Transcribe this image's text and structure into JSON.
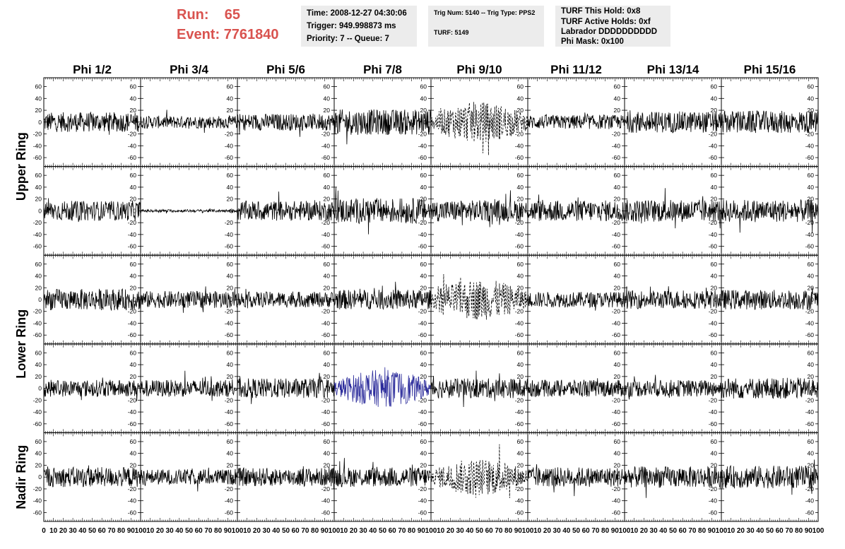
{
  "header": {
    "run_label": "Run:",
    "run_value": "65",
    "event_label": "Event:",
    "event_value": "7761840",
    "time": "Time: 2008-12-27 04:30:06",
    "trigger": "Trigger: 949.998873 ms",
    "priority": "Priority: 7 -- Queue: 7",
    "trig_num": "Trig Num: 5140 -- Trig Type: PPS2",
    "turf": "TURF: 5149",
    "turf_hold": "TURF This Hold: 0x8",
    "turf_active": "TURF Active Holds: 0xf",
    "labrador": "Labrador DDDDDDDDDD",
    "phi_mask": "Phi Mask: 0x100"
  },
  "colors": {
    "run_text": "#d9534f",
    "info_bg": "#ececec",
    "trace": "#000000",
    "highlight_trace": "#2b2b9b"
  },
  "chart_data": {
    "type": "line",
    "columns": [
      "Phi 1/2",
      "Phi 3/4",
      "Phi 5/6",
      "Phi 7/8",
      "Phi 9/10",
      "Phi 11/12",
      "Phi 13/14",
      "Phi 15/16"
    ],
    "ring_labels": [
      {
        "text": "Upper Ring",
        "spans_rows": [
          0,
          1
        ]
      },
      {
        "text": "Lower Ring",
        "spans_rows": [
          2,
          3
        ]
      },
      {
        "text": "Nadir Ring",
        "spans_rows": [
          4,
          4
        ]
      }
    ],
    "xlim": [
      0,
      100
    ],
    "ylim": [
      -75,
      75
    ],
    "y_ticks": [
      -60,
      -40,
      -20,
      0,
      20,
      40,
      60
    ],
    "x_ticks": [
      0,
      10,
      20,
      30,
      40,
      50,
      60,
      70,
      80,
      90,
      100
    ],
    "panels": [
      [
        {
          "amp": 14,
          "style": "solid"
        },
        {
          "amp": 9,
          "style": "solid"
        },
        {
          "amp": 12,
          "style": "solid"
        },
        {
          "amp": 18,
          "style": "solid"
        },
        {
          "amp": 24,
          "style": "dashed"
        },
        {
          "amp": 10,
          "style": "solid"
        },
        {
          "amp": 15,
          "style": "solid"
        },
        {
          "amp": 16,
          "style": "solid"
        }
      ],
      [
        {
          "amp": 14,
          "style": "solid"
        },
        {
          "amp": 2,
          "style": "solid"
        },
        {
          "amp": 14,
          "style": "solid"
        },
        {
          "amp": 18,
          "style": "solid"
        },
        {
          "amp": 15,
          "style": "solid"
        },
        {
          "amp": 15,
          "style": "solid"
        },
        {
          "amp": 16,
          "style": "solid"
        },
        {
          "amp": 16,
          "style": "solid"
        }
      ],
      [
        {
          "amp": 15,
          "style": "solid"
        },
        {
          "amp": 12,
          "style": "solid"
        },
        {
          "amp": 11,
          "style": "solid"
        },
        {
          "amp": 14,
          "style": "solid"
        },
        {
          "amp": 24,
          "style": "dashed"
        },
        {
          "amp": 11,
          "style": "solid"
        },
        {
          "amp": 13,
          "style": "solid"
        },
        {
          "amp": 14,
          "style": "solid"
        }
      ],
      [
        {
          "amp": 12,
          "style": "solid"
        },
        {
          "amp": 12,
          "style": "solid"
        },
        {
          "amp": 14,
          "style": "solid"
        },
        {
          "amp": 22,
          "style": "highlight"
        },
        {
          "amp": 14,
          "style": "solid"
        },
        {
          "amp": 12,
          "style": "solid"
        },
        {
          "amp": 12,
          "style": "solid"
        },
        {
          "amp": 15,
          "style": "solid"
        }
      ],
      [
        {
          "amp": 14,
          "style": "solid"
        },
        {
          "amp": 11,
          "style": "solid"
        },
        {
          "amp": 13,
          "style": "solid"
        },
        {
          "amp": 14,
          "style": "solid"
        },
        {
          "amp": 22,
          "style": "dashed"
        },
        {
          "amp": 14,
          "style": "solid"
        },
        {
          "amp": 15,
          "style": "solid"
        },
        {
          "amp": 16,
          "style": "solid"
        }
      ]
    ]
  }
}
